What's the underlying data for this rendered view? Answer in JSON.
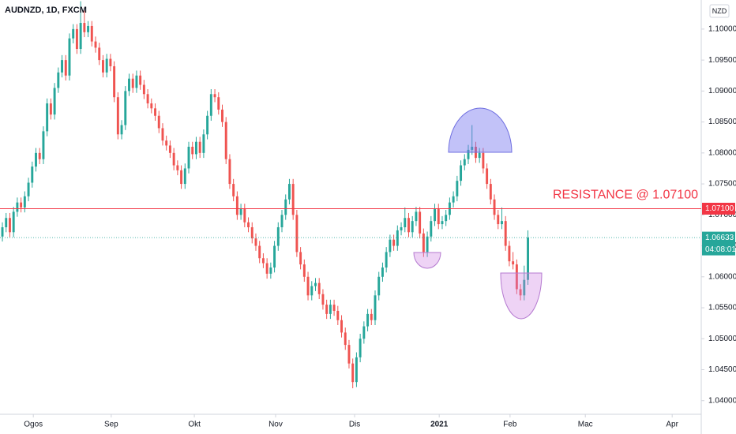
{
  "chart_data": {
    "type": "candlestick",
    "title": "AUDNZD, 1D, FXCM",
    "currency": "NZD",
    "up_color": "#26a69a",
    "down_color": "#ef5350",
    "ohlc": [
      [
        1.0665,
        1.0688,
        1.0657,
        1.068
      ],
      [
        1.068,
        1.0703,
        1.0672,
        1.0695
      ],
      [
        1.0695,
        1.0703,
        1.0664,
        1.0672
      ],
      [
        1.0672,
        1.0713,
        1.0664,
        1.0705
      ],
      [
        1.0705,
        1.0728,
        1.0697,
        1.072
      ],
      [
        1.072,
        1.0728,
        1.0704,
        1.0712
      ],
      [
        1.0712,
        1.0738,
        1.0704,
        1.073
      ],
      [
        1.073,
        1.076,
        1.0722,
        1.0752
      ],
      [
        1.0752,
        1.0786,
        1.0744,
        1.0778
      ],
      [
        1.0778,
        1.0808,
        1.077,
        1.08
      ],
      [
        1.08,
        1.0808,
        1.0782,
        1.079
      ],
      [
        1.079,
        1.0843,
        1.0782,
        1.0835
      ],
      [
        1.0835,
        1.0888,
        1.0827,
        1.088
      ],
      [
        1.088,
        1.0888,
        1.0854,
        1.0862
      ],
      [
        1.0862,
        1.0913,
        1.0854,
        1.0905
      ],
      [
        1.0905,
        1.0938,
        1.0897,
        1.093
      ],
      [
        1.093,
        1.0958,
        1.0922,
        1.095
      ],
      [
        1.095,
        1.0958,
        1.0917,
        1.0925
      ],
      [
        1.0925,
        1.0993,
        1.0917,
        1.0985
      ],
      [
        1.0985,
        1.1008,
        1.0977,
        1.1
      ],
      [
        1.1,
        1.1008,
        1.096,
        1.0968
      ],
      [
        1.0968,
        1.1045,
        1.096,
        1.101
      ],
      [
        1.101,
        1.103,
        1.0987,
        1.0995
      ],
      [
        1.0995,
        1.1013,
        1.0987,
        1.1005
      ],
      [
        1.1005,
        1.1013,
        1.0972,
        1.098
      ],
      [
        1.098,
        1.0988,
        1.0962,
        1.097
      ],
      [
        1.097,
        1.0978,
        1.0942,
        1.095
      ],
      [
        1.095,
        1.0958,
        1.0922,
        1.093
      ],
      [
        1.093,
        1.096,
        1.0922,
        1.0952
      ],
      [
        1.0952,
        1.096,
        1.0932,
        1.094
      ],
      [
        1.094,
        1.0948,
        1.0882,
        1.089
      ],
      [
        1.089,
        1.0898,
        1.0822,
        1.083
      ],
      [
        1.083,
        1.0853,
        1.0822,
        1.0845
      ],
      [
        1.0845,
        1.0908,
        1.0837,
        1.09
      ],
      [
        1.09,
        1.0928,
        1.0892,
        1.092
      ],
      [
        1.092,
        1.0928,
        1.0897,
        1.0905
      ],
      [
        1.0905,
        1.0933,
        1.0897,
        1.0925
      ],
      [
        1.0925,
        1.0933,
        1.0902,
        1.091
      ],
      [
        1.091,
        1.0918,
        1.0887,
        1.0895
      ],
      [
        1.0895,
        1.0903,
        1.0872,
        1.088
      ],
      [
        1.088,
        1.0888,
        1.0864,
        1.0872
      ],
      [
        1.0872,
        1.088,
        1.0852,
        1.086
      ],
      [
        1.086,
        1.0868,
        1.0832,
        1.084
      ],
      [
        1.084,
        1.0848,
        1.0812,
        1.082
      ],
      [
        1.082,
        1.0828,
        1.0804,
        1.0812
      ],
      [
        1.0812,
        1.082,
        1.0792,
        1.08
      ],
      [
        1.08,
        1.0808,
        1.0772,
        1.078
      ],
      [
        1.078,
        1.0788,
        1.0764,
        1.0772
      ],
      [
        1.0772,
        1.078,
        1.0742,
        1.075
      ],
      [
        1.075,
        1.0783,
        1.0742,
        1.0775
      ],
      [
        1.0775,
        1.0818,
        1.0767,
        1.081
      ],
      [
        1.081,
        1.0818,
        1.079,
        1.0798
      ],
      [
        1.0798,
        1.0826,
        1.079,
        1.0818
      ],
      [
        1.0818,
        1.0826,
        1.0792,
        1.08
      ],
      [
        1.08,
        1.0838,
        1.0792,
        1.083
      ],
      [
        1.083,
        1.0868,
        1.0822,
        1.086
      ],
      [
        1.086,
        1.0903,
        1.0852,
        1.0895
      ],
      [
        1.0895,
        1.0903,
        1.0882,
        1.089
      ],
      [
        1.089,
        1.0898,
        1.0862,
        1.087
      ],
      [
        1.087,
        1.0878,
        1.0842,
        1.085
      ],
      [
        1.085,
        1.0858,
        1.0782,
        1.079
      ],
      [
        1.079,
        1.0798,
        1.0742,
        1.075
      ],
      [
        1.075,
        1.0758,
        1.0722,
        1.073
      ],
      [
        1.073,
        1.0738,
        1.0692,
        1.07
      ],
      [
        1.07,
        1.0718,
        1.0692,
        1.071
      ],
      [
        1.071,
        1.0718,
        1.068,
        1.0688
      ],
      [
        1.0688,
        1.0696,
        1.0672,
        1.068
      ],
      [
        1.068,
        1.0688,
        1.0654,
        1.0662
      ],
      [
        1.0662,
        1.067,
        1.0642,
        1.065
      ],
      [
        1.065,
        1.0658,
        1.0622,
        1.063
      ],
      [
        1.063,
        1.0638,
        1.0614,
        1.0622
      ],
      [
        1.0622,
        1.063,
        1.0597,
        1.0605
      ],
      [
        1.0605,
        1.0623,
        1.0597,
        1.0615
      ],
      [
        1.0615,
        1.0658,
        1.0607,
        1.065
      ],
      [
        1.065,
        1.0688,
        1.0642,
        1.068
      ],
      [
        1.068,
        1.0708,
        1.0672,
        1.07
      ],
      [
        1.07,
        1.0733,
        1.0692,
        1.0725
      ],
      [
        1.0725,
        1.0758,
        1.0717,
        1.075
      ],
      [
        1.075,
        1.0758,
        1.0692,
        1.07
      ],
      [
        1.07,
        1.0708,
        1.0632,
        1.064
      ],
      [
        1.064,
        1.0648,
        1.0612,
        1.062
      ],
      [
        1.062,
        1.0628,
        1.0592,
        1.06
      ],
      [
        1.06,
        1.0608,
        1.0562,
        1.057
      ],
      [
        1.057,
        1.0593,
        1.0562,
        1.0585
      ],
      [
        1.0585,
        1.0598,
        1.0577,
        1.059
      ],
      [
        1.059,
        1.0598,
        1.0564,
        1.0572
      ],
      [
        1.0572,
        1.058,
        1.0547,
        1.0555
      ],
      [
        1.0555,
        1.0563,
        1.0532,
        1.054
      ],
      [
        1.054,
        1.0563,
        1.0532,
        1.0555
      ],
      [
        1.0555,
        1.0563,
        1.0537,
        1.0545
      ],
      [
        1.0545,
        1.0553,
        1.0522,
        1.053
      ],
      [
        1.053,
        1.0538,
        1.0502,
        1.051
      ],
      [
        1.051,
        1.0518,
        1.0482,
        1.049
      ],
      [
        1.049,
        1.0498,
        1.0452,
        1.046
      ],
      [
        1.046,
        1.0468,
        1.042,
        1.043
      ],
      [
        1.043,
        1.0478,
        1.0422,
        1.047
      ],
      [
        1.047,
        1.0508,
        1.0462,
        1.05
      ],
      [
        1.05,
        1.0528,
        1.0492,
        1.052
      ],
      [
        1.052,
        1.0548,
        1.0512,
        1.054
      ],
      [
        1.054,
        1.0548,
        1.0522,
        1.053
      ],
      [
        1.053,
        1.0578,
        1.0522,
        1.057
      ],
      [
        1.057,
        1.0608,
        1.0562,
        1.06
      ],
      [
        1.06,
        1.0623,
        1.0592,
        1.0615
      ],
      [
        1.0615,
        1.0648,
        1.0607,
        1.064
      ],
      [
        1.064,
        1.0668,
        1.0632,
        1.066
      ],
      [
        1.066,
        1.0668,
        1.0642,
        1.065
      ],
      [
        1.065,
        1.0683,
        1.0642,
        1.0675
      ],
      [
        1.0675,
        1.0688,
        1.0667,
        1.068
      ],
      [
        1.068,
        1.0712,
        1.0672,
        1.0695
      ],
      [
        1.0695,
        1.0703,
        1.0664,
        1.0672
      ],
      [
        1.0672,
        1.0698,
        1.0664,
        1.069
      ],
      [
        1.069,
        1.0713,
        1.0682,
        1.0705
      ],
      [
        1.0705,
        1.0713,
        1.0662,
        1.067
      ],
      [
        1.067,
        1.0678,
        1.0632,
        1.064
      ],
      [
        1.064,
        1.0673,
        1.0632,
        1.0665
      ],
      [
        1.0665,
        1.0698,
        1.0657,
        1.069
      ],
      [
        1.069,
        1.0718,
        1.0682,
        1.071
      ],
      [
        1.071,
        1.0718,
        1.0677,
        1.0685
      ],
      [
        1.0685,
        1.0698,
        1.0677,
        1.069
      ],
      [
        1.069,
        1.0708,
        1.0682,
        1.07
      ],
      [
        1.07,
        1.0728,
        1.0692,
        1.072
      ],
      [
        1.072,
        1.0738,
        1.0712,
        1.073
      ],
      [
        1.073,
        1.0763,
        1.0722,
        1.0755
      ],
      [
        1.0755,
        1.0788,
        1.0747,
        1.078
      ],
      [
        1.078,
        1.0798,
        1.0772,
        1.079
      ],
      [
        1.079,
        1.0813,
        1.0782,
        1.0805
      ],
      [
        1.0805,
        1.0845,
        1.0797,
        1.081
      ],
      [
        1.081,
        1.0818,
        1.0784,
        1.0792
      ],
      [
        1.0792,
        1.0808,
        1.0784,
        1.08
      ],
      [
        1.08,
        1.0808,
        1.0767,
        1.0775
      ],
      [
        1.0775,
        1.0783,
        1.0742,
        1.075
      ],
      [
        1.075,
        1.0758,
        1.0717,
        1.0725
      ],
      [
        1.0725,
        1.0733,
        1.0692,
        1.07
      ],
      [
        1.07,
        1.0708,
        1.0677,
        1.0685
      ],
      [
        1.0685,
        1.0712,
        1.0677,
        1.069
      ],
      [
        1.069,
        1.0698,
        1.0642,
        1.065
      ],
      [
        1.065,
        1.0658,
        1.0617,
        1.0625
      ],
      [
        1.0625,
        1.064,
        1.0612,
        1.062
      ],
      [
        1.062,
        1.0628,
        1.0572,
        1.058
      ],
      [
        1.058,
        1.0588,
        1.0562,
        1.057
      ],
      [
        1.057,
        1.0618,
        1.0562,
        1.0595
      ],
      [
        1.0595,
        1.0675,
        1.0587,
        1.06633
      ]
    ],
    "xlim": [
      -0.64,
      187.5
    ],
    "xticks": [
      {
        "value": 8.3,
        "label": "Ogos"
      },
      {
        "value": 29.2,
        "label": "Sep"
      },
      {
        "value": 51.5,
        "label": "Okt"
      },
      {
        "value": 73.3,
        "label": "Nov"
      },
      {
        "value": 94.5,
        "label": "Dis"
      },
      {
        "value": 117.2,
        "label": "2021"
      },
      {
        "value": 136.2,
        "label": "Feb"
      },
      {
        "value": 156.4,
        "label": "Mac"
      },
      {
        "value": 179.7,
        "label": "Apr"
      }
    ],
    "ylim": [
      1.0378,
      1.1047
    ],
    "yticks": [
      {
        "value": 1.04,
        "label": "1.04000"
      },
      {
        "value": 1.045,
        "label": "1.04500"
      },
      {
        "value": 1.05,
        "label": "1.05000"
      },
      {
        "value": 1.055,
        "label": "1.05500"
      },
      {
        "value": 1.06,
        "label": "1.06000"
      },
      {
        "value": 1.065,
        "label": "1.06500"
      },
      {
        "value": 1.07,
        "label": "1.07000"
      },
      {
        "value": 1.075,
        "label": "1.07500"
      },
      {
        "value": 1.08,
        "label": "1.08000"
      },
      {
        "value": 1.085,
        "label": "1.08500"
      },
      {
        "value": 1.09,
        "label": "1.09000"
      },
      {
        "value": 1.095,
        "label": "1.09500"
      },
      {
        "value": 1.1,
        "label": "1.10000"
      }
    ],
    "resistance": {
      "value": 1.071,
      "label": "1.07100",
      "text": "RESISTANCE @ 1.07100",
      "color": "#f23645"
    },
    "last": {
      "value": 1.06633,
      "countdown": "04:08:01",
      "color": "#26a69a"
    }
  }
}
